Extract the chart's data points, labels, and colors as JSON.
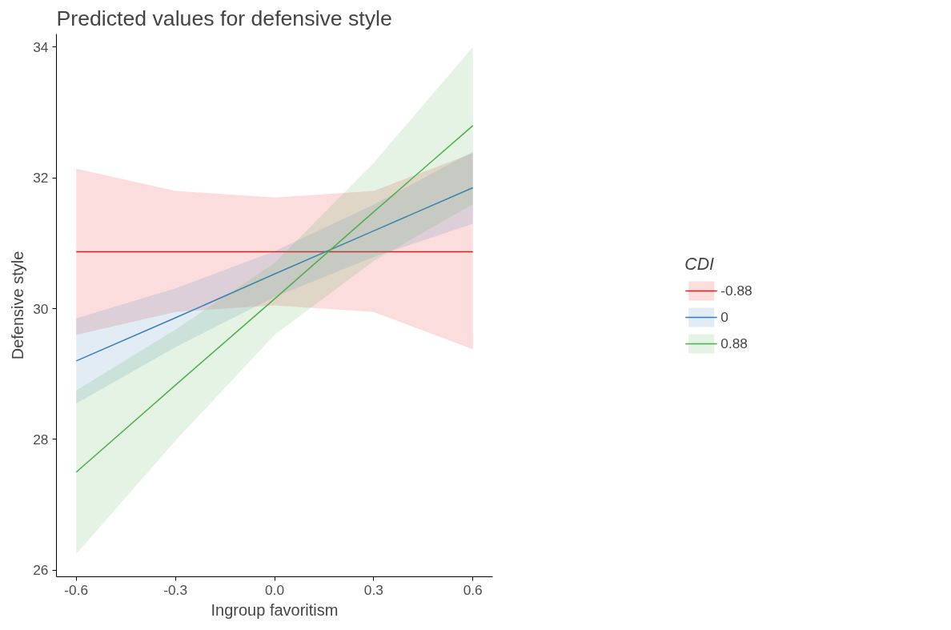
{
  "chart_data": {
    "type": "line",
    "title": "Predicted values for defensive style",
    "xlabel": "Ingroup favoritism",
    "ylabel": "Defensive style",
    "legend_title": "CDI",
    "x": [
      -0.6,
      -0.3,
      0,
      0.3,
      0.6
    ],
    "series": [
      {
        "name": "-0.88",
        "color": "#e41a1c",
        "values": [
          30.87,
          30.87,
          30.87,
          30.87,
          30.87
        ],
        "lower": [
          29.6,
          29.95,
          30.05,
          29.95,
          29.38
        ],
        "upper": [
          32.14,
          31.8,
          31.7,
          31.8,
          32.38
        ]
      },
      {
        "name": "0",
        "color": "#377eb8",
        "values": [
          29.2,
          29.86,
          30.53,
          31.19,
          31.85
        ],
        "lower": [
          28.55,
          29.41,
          30.18,
          30.79,
          31.3
        ],
        "upper": [
          29.85,
          30.31,
          30.88,
          31.59,
          32.4
        ]
      },
      {
        "name": "0.88",
        "color": "#4daf4a",
        "values": [
          27.5,
          28.83,
          30.15,
          31.48,
          32.8
        ],
        "lower": [
          26.25,
          27.98,
          29.6,
          30.73,
          31.6
        ],
        "upper": [
          28.75,
          29.68,
          30.7,
          32.23,
          34.0
        ]
      }
    ],
    "xlim": [
      -0.66,
      0.66
    ],
    "ylim": [
      25.9,
      34.2
    ],
    "xticks": [
      -0.6,
      -0.3,
      {
        "value": 0,
        "label": "0.0"
      },
      0.3,
      0.6
    ],
    "yticks": [
      26,
      28,
      30,
      32,
      34
    ],
    "grid": false,
    "legend": "right",
    "marker": "none",
    "line_style": "solid"
  }
}
